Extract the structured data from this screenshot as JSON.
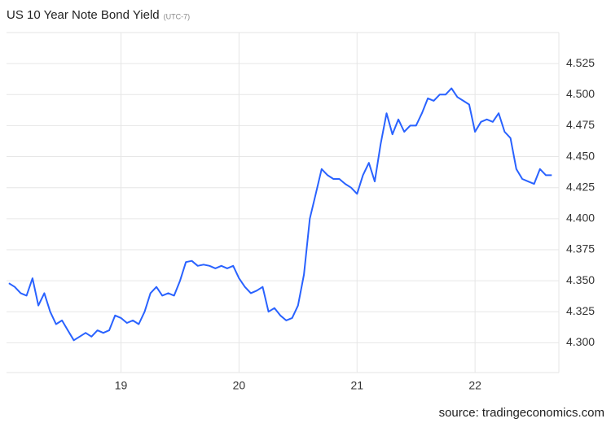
{
  "chart_data": {
    "type": "line",
    "title": "US 10 Year Note Bond Yield",
    "subtitle": "(UTC-7)",
    "source": "source: tradingeconomics.com",
    "x": [
      18.05,
      18.1,
      18.15,
      18.2,
      18.25,
      18.3,
      18.35,
      18.4,
      18.45,
      18.5,
      18.55,
      18.6,
      18.65,
      18.7,
      18.75,
      18.8,
      18.85,
      18.9,
      18.95,
      19.0,
      19.05,
      19.1,
      19.15,
      19.2,
      19.25,
      19.3,
      19.35,
      19.4,
      19.45,
      19.5,
      19.55,
      19.6,
      19.65,
      19.7,
      19.75,
      19.8,
      19.85,
      19.9,
      19.95,
      20.0,
      20.05,
      20.1,
      20.15,
      20.2,
      20.25,
      20.3,
      20.35,
      20.4,
      20.45,
      20.5,
      20.55,
      20.6,
      20.65,
      20.7,
      20.75,
      20.8,
      20.85,
      20.9,
      20.95,
      21.0,
      21.05,
      21.1,
      21.15,
      21.2,
      21.25,
      21.3,
      21.35,
      21.4,
      21.45,
      21.5,
      21.55,
      21.6,
      21.65,
      21.7,
      21.75,
      21.8,
      21.85,
      21.9,
      21.95,
      22.0,
      22.05,
      22.1,
      22.15,
      22.2,
      22.25,
      22.3,
      22.35,
      22.4,
      22.45,
      22.5,
      22.55,
      22.6,
      22.65
    ],
    "series": [
      {
        "name": "US 10 Year Note Bond Yield",
        "color": "#2962ff",
        "values": [
          4.348,
          4.345,
          4.34,
          4.338,
          4.352,
          4.33,
          4.34,
          4.325,
          4.315,
          4.318,
          4.31,
          4.302,
          4.305,
          4.308,
          4.305,
          4.31,
          4.308,
          4.31,
          4.322,
          4.32,
          4.316,
          4.318,
          4.315,
          4.325,
          4.34,
          4.345,
          4.338,
          4.34,
          4.338,
          4.35,
          4.365,
          4.366,
          4.362,
          4.363,
          4.362,
          4.36,
          4.362,
          4.36,
          4.362,
          4.352,
          4.345,
          4.34,
          4.342,
          4.345,
          4.325,
          4.328,
          4.322,
          4.318,
          4.32,
          4.33,
          4.355,
          4.4,
          4.42,
          4.44,
          4.435,
          4.432,
          4.432,
          4.428,
          4.425,
          4.42,
          4.435,
          4.445,
          4.43,
          4.46,
          4.485,
          4.468,
          4.48,
          4.47,
          4.475,
          4.475,
          4.485,
          4.497,
          4.495,
          4.5,
          4.5,
          4.505,
          4.498,
          4.495,
          4.492,
          4.47,
          4.478,
          4.48,
          4.478,
          4.485,
          4.47,
          4.465,
          4.44,
          4.432,
          4.43,
          4.428,
          4.44,
          4.435,
          4.435
        ]
      }
    ],
    "xlim": [
      18.03,
      22.71
    ],
    "xticks": [
      19,
      20,
      21,
      22
    ],
    "ylim": [
      4.276,
      4.55
    ],
    "yticks": [
      {
        "value": 4.3,
        "label": "4.300"
      },
      {
        "value": 4.325,
        "label": "4.325"
      },
      {
        "value": 4.35,
        "label": "4.350"
      },
      {
        "value": 4.375,
        "label": "4.375"
      },
      {
        "value": 4.4,
        "label": "4.400"
      },
      {
        "value": 4.425,
        "label": "4.425"
      },
      {
        "value": 4.45,
        "label": "4.450"
      },
      {
        "value": 4.475,
        "label": "4.475"
      },
      {
        "value": 4.5,
        "label": "4.500"
      },
      {
        "value": 4.525,
        "label": "4.525"
      }
    ],
    "grid": true
  }
}
